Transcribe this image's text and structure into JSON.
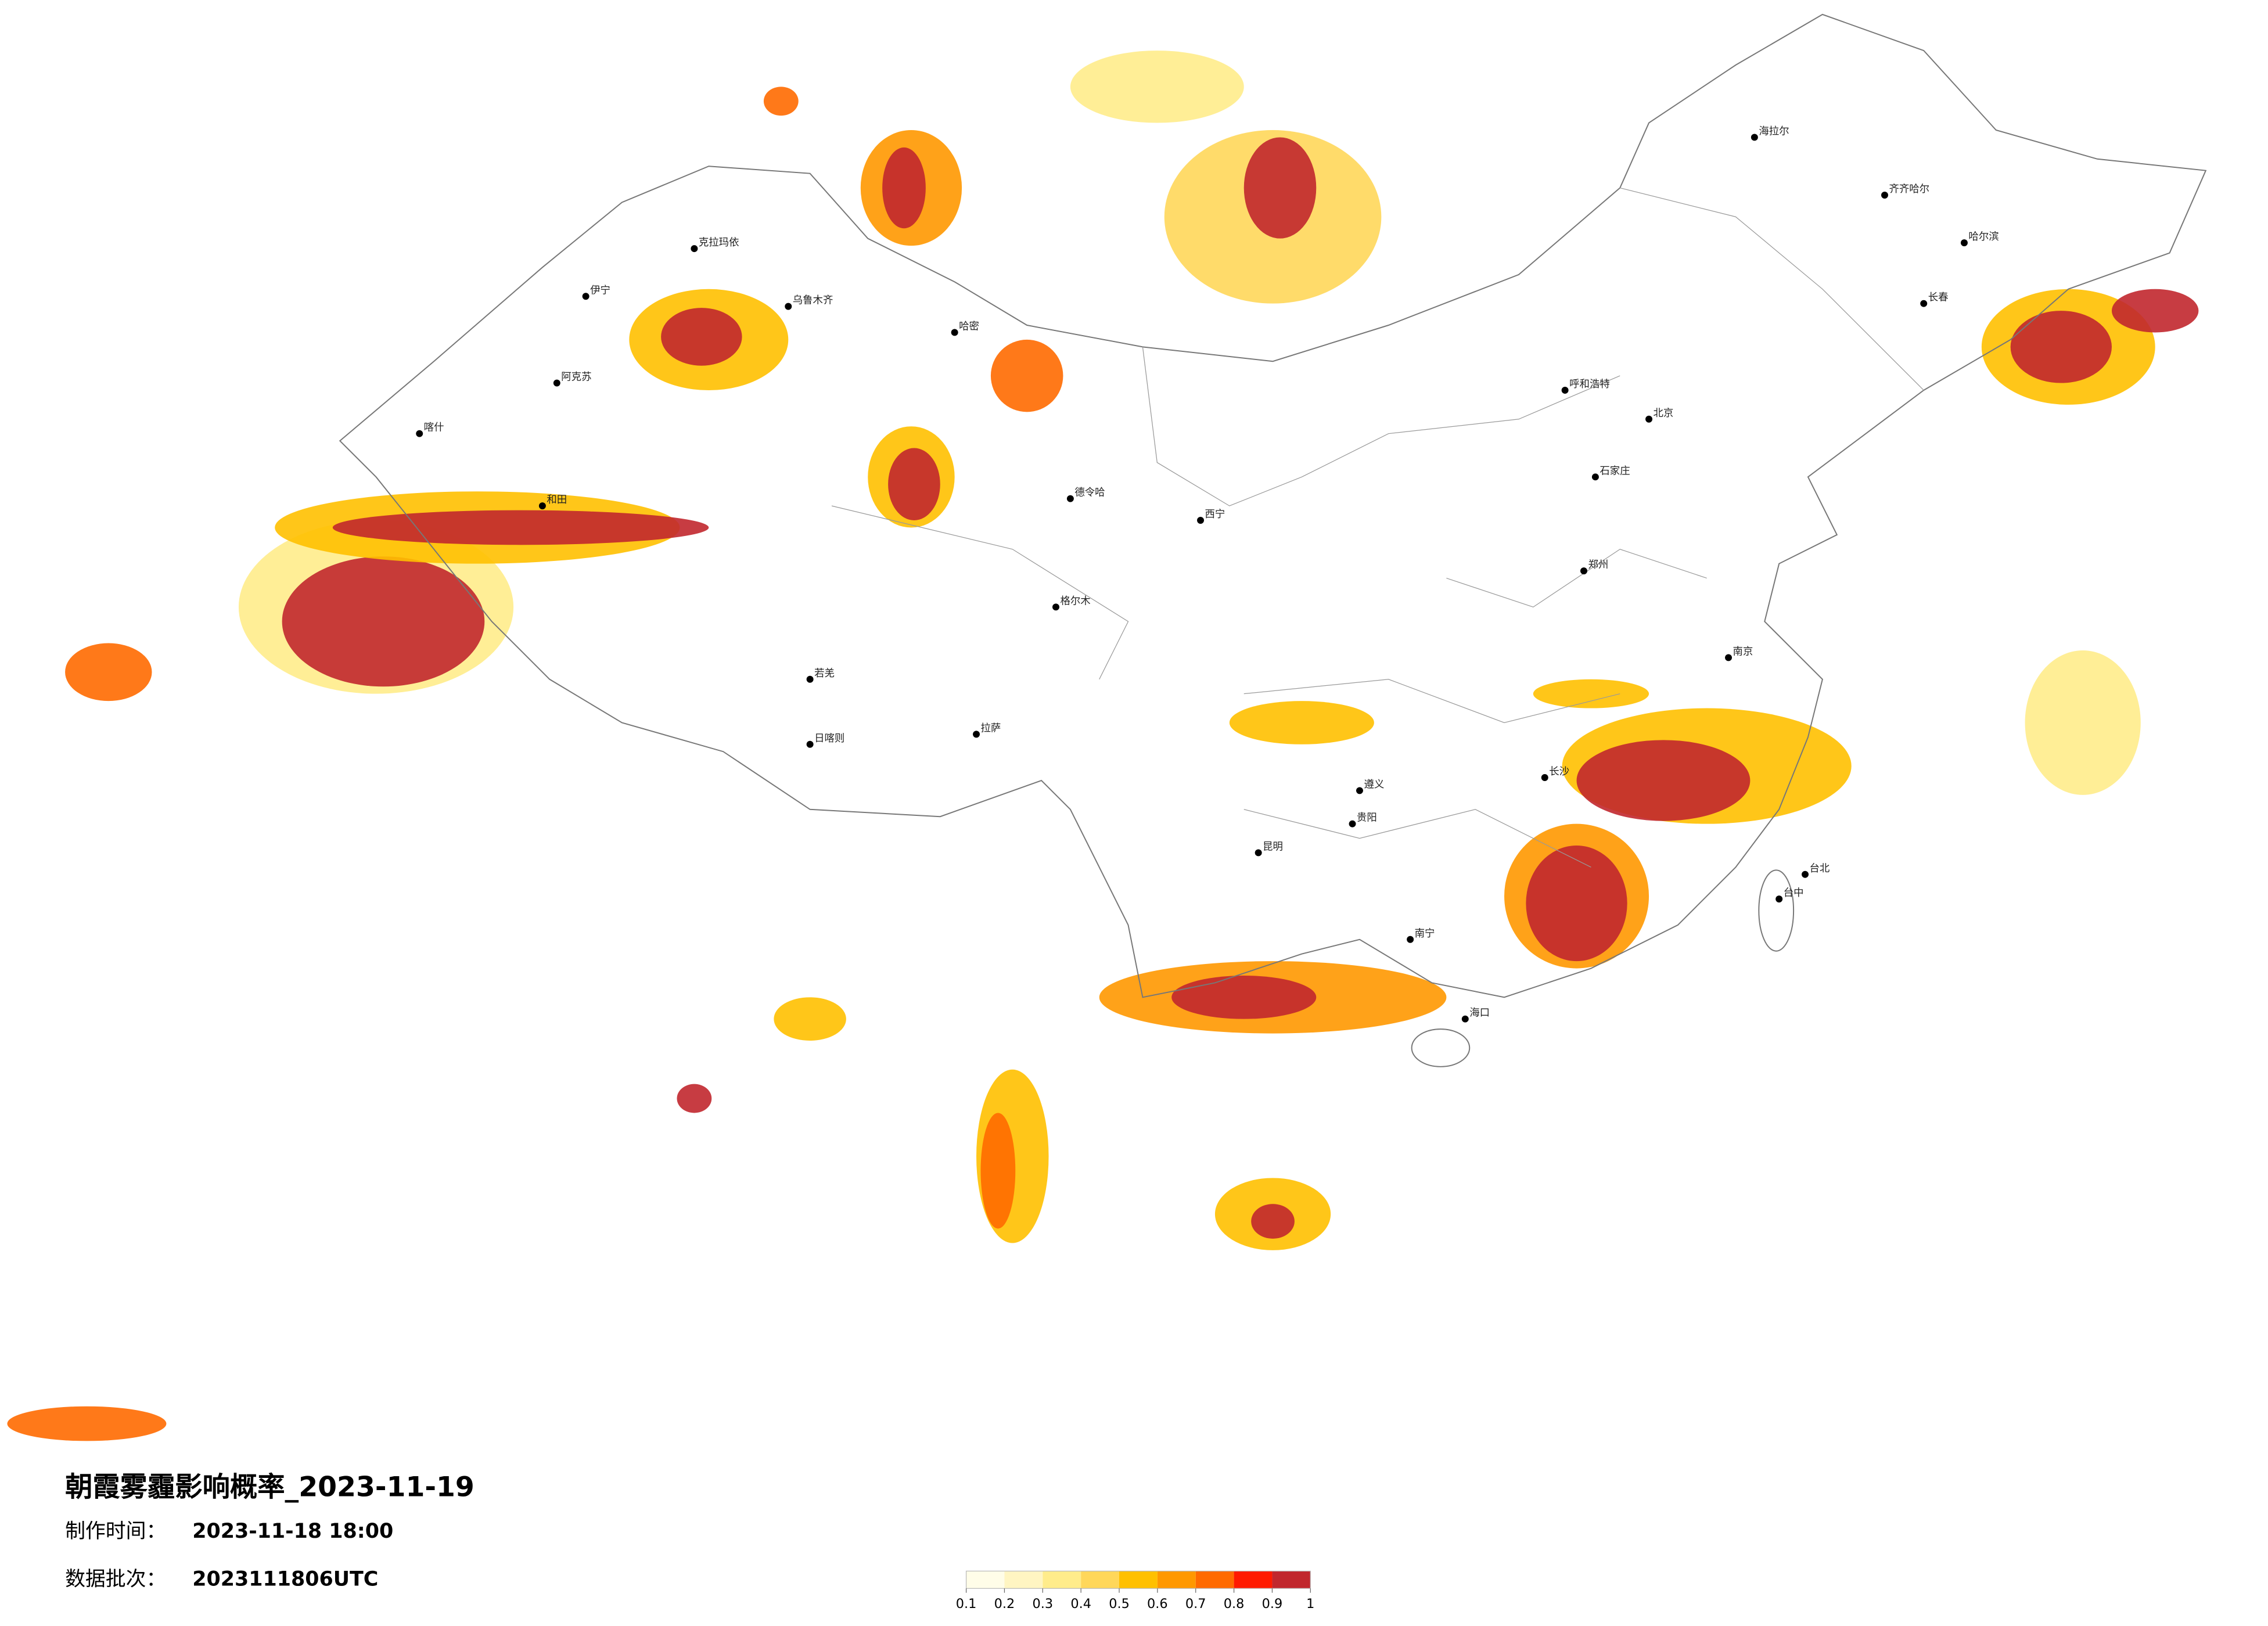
{
  "title": "朝霞雾霾影响概率_2023-11-19",
  "made_time": {
    "label": "制作时间：",
    "value": "2023-11-18 18:00"
  },
  "batch": {
    "label": "数据批次：",
    "value": "2023111806UTC"
  },
  "legend": {
    "colors": [
      "#fffde8",
      "#fff5c2",
      "#ffec8b",
      "#ffd75a",
      "#ffc000",
      "#ff9800",
      "#ff6a00",
      "#ff1a00",
      "#c1272d"
    ],
    "ticks": [
      0.1,
      0.2,
      0.3,
      0.4,
      0.5,
      0.6,
      0.7,
      0.8,
      0.9,
      1
    ]
  },
  "cities": [
    "克拉玛依",
    "乌鲁木齐",
    "哈密",
    "阿克苏",
    "和田",
    "喀什",
    "拉萨",
    "日喀则",
    "西宁",
    "海拉尔",
    "齐齐哈尔",
    "哈尔滨",
    "长春",
    "北京",
    "呼和浩特",
    "石家庄",
    "郑州",
    "南京",
    "长沙",
    "南宁",
    "海口",
    "台北",
    "台中",
    "昆明",
    "贵阳",
    "遵义",
    "德令哈",
    "格尔木",
    "伊宁",
    "若羌"
  ]
}
